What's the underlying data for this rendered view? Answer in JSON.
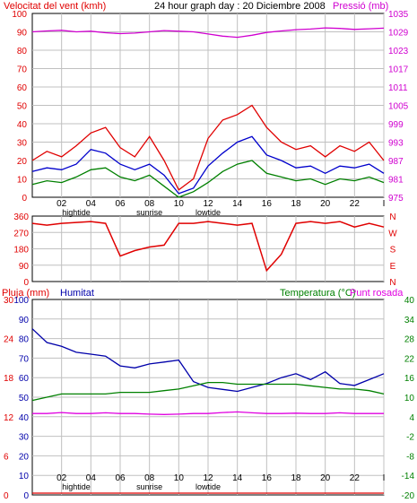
{
  "header": {
    "left_title": "Velocitat del vent (kmh)",
    "center_title": "24 hour graph day : 20 Diciembre 2008",
    "right_title": "Pressió (mb)"
  },
  "mid_header": {
    "left_title": "Pluja (mm)",
    "second_title": "Humitat",
    "right_title": "Temperatura (°C)",
    "right_title2": "Punt rosada"
  },
  "colors": {
    "wind_gust": "#e00000",
    "wind_avg": "#0000cc",
    "wind_low": "#008000",
    "pressure": "#d000d0",
    "humidity": "#0000aa",
    "temperature": "#008000",
    "dewpoint": "#e000e0",
    "rain": "#e00000",
    "grid": "#c0c0c0",
    "frame": "#000000"
  },
  "chart_data": [
    {
      "type": "line",
      "title": "Velocitat del vent (kmh) / Pressió (mb)",
      "x_tick_labels": [
        "02",
        "04",
        "06",
        "08",
        "10",
        "12",
        "14",
        "16",
        "18",
        "20",
        "22",
        "I"
      ],
      "x_sub_labels": [
        "hightide",
        "sunrise",
        "lowtide"
      ],
      "ylabel_left": "Velocitat del vent (kmh)",
      "ylabel_right": "Pressió (mb)",
      "ylim_left": [
        0,
        100
      ],
      "ylim_right": [
        975,
        1035
      ],
      "y_ticks_left": [
        "0",
        "10",
        "20",
        "30",
        "40",
        "50",
        "60",
        "70",
        "80",
        "90",
        "100"
      ],
      "y_ticks_right": [
        "975",
        "981",
        "987",
        "993",
        "999",
        "1005",
        "1011",
        "1017",
        "1023",
        "1029",
        "1035"
      ],
      "x": [
        0,
        1,
        2,
        3,
        4,
        5,
        6,
        7,
        8,
        9,
        10,
        11,
        12,
        13,
        14,
        15,
        16,
        17,
        18,
        19,
        20,
        21,
        22,
        23,
        24
      ],
      "series": [
        {
          "name": "Pressió",
          "axis": "right",
          "values": [
            1029,
            1029.3,
            1029.5,
            1029,
            1029.2,
            1028.7,
            1028.4,
            1028.6,
            1029,
            1029.4,
            1029.2,
            1029,
            1028.3,
            1027.6,
            1027.2,
            1027.9,
            1028.8,
            1029.3,
            1029.7,
            1029.9,
            1030.3,
            1030.1,
            1029.8,
            1030,
            1030.2
          ]
        },
        {
          "name": "Gust",
          "axis": "left",
          "values": [
            20,
            25,
            22,
            28,
            35,
            38,
            27,
            22,
            33,
            20,
            4,
            10,
            32,
            42,
            45,
            50,
            38,
            30,
            26,
            28,
            22,
            28,
            25,
            30,
            20
          ]
        },
        {
          "name": "Average",
          "axis": "left",
          "values": [
            14,
            16,
            15,
            18,
            26,
            24,
            18,
            15,
            18,
            12,
            2,
            5,
            17,
            24,
            30,
            33,
            23,
            20,
            16,
            17,
            13,
            17,
            16,
            18,
            13
          ]
        },
        {
          "name": "Low",
          "axis": "left",
          "values": [
            7,
            9,
            8,
            11,
            15,
            16,
            11,
            9,
            12,
            6,
            0,
            3,
            8,
            14,
            18,
            20,
            13,
            11,
            9,
            10,
            7,
            10,
            9,
            11,
            8
          ]
        }
      ],
      "grid": true
    },
    {
      "type": "line",
      "title": "Wind direction",
      "y_ticks_left": [
        "0",
        "90",
        "180",
        "270",
        "360"
      ],
      "y_ticks_right": [
        "N",
        "W",
        "S",
        "E",
        "N"
      ],
      "ylim": [
        0,
        360
      ],
      "x": [
        0,
        1,
        2,
        3,
        4,
        5,
        6,
        7,
        8,
        9,
        10,
        11,
        12,
        13,
        14,
        15,
        16,
        17,
        18,
        19,
        20,
        21,
        22,
        23,
        24
      ],
      "series": [
        {
          "name": "Direction",
          "values": [
            320,
            310,
            320,
            325,
            330,
            320,
            140,
            170,
            190,
            200,
            320,
            320,
            330,
            320,
            310,
            320,
            60,
            150,
            320,
            330,
            320,
            330,
            300,
            320,
            300
          ]
        }
      ],
      "grid": true
    },
    {
      "type": "line",
      "title": "Pluja (mm) / Humitat / Temperatura (°C) / Punt rosada",
      "x_tick_labels": [
        "02",
        "04",
        "06",
        "08",
        "10",
        "12",
        "14",
        "16",
        "18",
        "20",
        "22",
        "I"
      ],
      "x_sub_labels": [
        "hightide",
        "sunrise",
        "lowtide"
      ],
      "y_ticks_rain": [
        "0",
        "6",
        "12",
        "18",
        "24",
        "30"
      ],
      "y_ticks_humidity": [
        "0",
        "10",
        "20",
        "30",
        "40",
        "50",
        "60",
        "70",
        "80",
        "90",
        "100"
      ],
      "y_ticks_temperature": [
        "-20",
        "-14",
        "-8",
        "-2",
        "4",
        "10",
        "16",
        "22",
        "28",
        "34",
        "40"
      ],
      "ylim_humidity": [
        0,
        100
      ],
      "ylim_temperature": [
        -20,
        40
      ],
      "x": [
        0,
        1,
        2,
        3,
        4,
        5,
        6,
        7,
        8,
        9,
        10,
        11,
        12,
        13,
        14,
        15,
        16,
        17,
        18,
        19,
        20,
        21,
        22,
        23,
        24
      ],
      "series": [
        {
          "name": "Humitat",
          "axis": "humidity",
          "values": [
            85,
            78,
            76,
            73,
            72,
            71,
            66,
            65,
            67,
            68,
            69,
            58,
            55,
            54,
            53,
            55,
            57,
            60,
            62,
            59,
            63,
            57,
            56,
            59,
            62
          ]
        },
        {
          "name": "Temperatura",
          "axis": "temperature",
          "values": [
            9,
            10,
            11,
            11,
            11,
            11,
            11.5,
            11.5,
            11.5,
            12,
            12.5,
            13.5,
            14.5,
            14.5,
            14,
            14,
            14,
            14,
            14,
            13.5,
            13,
            12.5,
            12.5,
            12,
            11
          ]
        },
        {
          "name": "Punt rosada",
          "axis": "temperature",
          "values": [
            5,
            5,
            5.3,
            5,
            5,
            5.2,
            5,
            5,
            4.8,
            4.7,
            4.8,
            5,
            5,
            5.3,
            5.5,
            5.2,
            5,
            5,
            5.1,
            5,
            5,
            5.2,
            5,
            5,
            5
          ]
        },
        {
          "name": "Pluja",
          "axis": "rain",
          "values": [
            0,
            0,
            0,
            0,
            0,
            0,
            0,
            0,
            0,
            0,
            0,
            0,
            0,
            0,
            0,
            0,
            0,
            0,
            0,
            0,
            0,
            0,
            0,
            0,
            0
          ]
        }
      ],
      "grid": true
    }
  ]
}
